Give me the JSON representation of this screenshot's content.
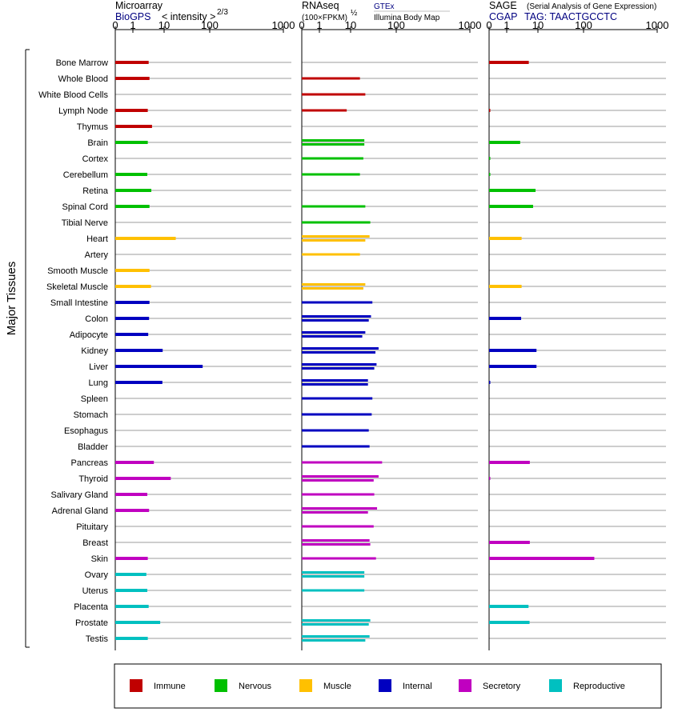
{
  "chart_data": {
    "type": "bar",
    "ylabel": "Major Tissues",
    "categories": [
      "Bone Marrow",
      "Whole Blood",
      "White Blood Cells",
      "Lymph Node",
      "Thymus",
      "Brain",
      "Cortex",
      "Cerebellum",
      "Retina",
      "Spinal Cord",
      "Tibial Nerve",
      "Heart",
      "Artery",
      "Smooth Muscle",
      "Skeletal Muscle",
      "Small Intestine",
      "Colon",
      "Adipocyte",
      "Kidney",
      "Liver",
      "Lung",
      "Spleen",
      "Stomach",
      "Esophagus",
      "Bladder",
      "Pancreas",
      "Thyroid",
      "Salivary Gland",
      "Adrenal Gland",
      "Pituitary",
      "Breast",
      "Skin",
      "Ovary",
      "Uterus",
      "Placenta",
      "Prostate",
      "Testis"
    ],
    "groups": [
      {
        "name": "Immune",
        "color": "#c00000",
        "tissues": [
          "Bone Marrow",
          "Whole Blood",
          "White Blood Cells",
          "Lymph Node",
          "Thymus"
        ]
      },
      {
        "name": "Nervous",
        "color": "#00c000",
        "tissues": [
          "Brain",
          "Cortex",
          "Cerebellum",
          "Retina",
          "Spinal Cord",
          "Tibial Nerve"
        ]
      },
      {
        "name": "Muscle",
        "color": "#ffc000",
        "tissues": [
          "Heart",
          "Artery",
          "Smooth Muscle",
          "Skeletal Muscle"
        ]
      },
      {
        "name": "Internal",
        "color": "#0000c0",
        "tissues": [
          "Small Intestine",
          "Colon",
          "Adipocyte",
          "Kidney",
          "Liver",
          "Lung",
          "Spleen",
          "Stomach",
          "Esophagus",
          "Bladder"
        ]
      },
      {
        "name": "Secretory",
        "color": "#c000c0",
        "tissues": [
          "Pancreas",
          "Thyroid",
          "Salivary Gland",
          "Adrenal Gland",
          "Pituitary",
          "Breast",
          "Skin"
        ]
      },
      {
        "name": "Reproductive",
        "color": "#00c0c0",
        "tissues": [
          "Ovary",
          "Uterus",
          "Placenta",
          "Prostate",
          "Testis"
        ]
      }
    ],
    "panels": [
      {
        "id": "microarray",
        "title": "Microarray",
        "source": "BioGPS",
        "scale_label_main": "< intensity >",
        "scale_label_exp": "2/3",
        "ticks": [
          "0",
          "1",
          "10",
          "100",
          "1000"
        ],
        "xlim": [
          0,
          1000
        ],
        "values": {
          "Bone Marrow": [
            3.2
          ],
          "Whole Blood": [
            3.4
          ],
          "Lymph Node": [
            3.0
          ],
          "Thymus": [
            4.1
          ],
          "Brain": [
            3.0
          ],
          "Cerebellum": [
            2.9
          ],
          "Retina": [
            3.9
          ],
          "Spinal Cord": [
            3.4
          ],
          "Heart": [
            18
          ],
          "Smooth Muscle": [
            3.4
          ],
          "Skeletal Muscle": [
            3.8
          ],
          "Small Intestine": [
            3.4
          ],
          "Colon": [
            3.3
          ],
          "Adipocyte": [
            3.1
          ],
          "Kidney": [
            9.0
          ],
          "Liver": [
            70
          ],
          "Lung": [
            8.8
          ],
          "Pancreas": [
            4.7
          ],
          "Thyroid": [
            14
          ],
          "Salivary Gland": [
            2.9
          ],
          "Adrenal Gland": [
            3.3
          ],
          "Skin": [
            3.0
          ],
          "Ovary": [
            2.7
          ],
          "Uterus": [
            2.9
          ],
          "Placenta": [
            3.2
          ],
          "Prostate": [
            7.5
          ],
          "Testis": [
            3.0
          ]
        }
      },
      {
        "id": "rnaseq",
        "title": "RNAseq",
        "scale_label": "(100×FPKM)",
        "scale_label_exp": "½",
        "source_top": "GTEx",
        "source_bottom": "Illumina Body Map",
        "ticks": [
          "0",
          "1",
          "10",
          "100",
          "1000"
        ],
        "xlim": [
          0,
          1000
        ],
        "values": {
          "Whole Blood": [
            16
          ],
          "White Blood Cells": [
            21
          ],
          "Lymph Node": [
            7.5
          ],
          "Brain": [
            20,
            20
          ],
          "Cortex": [
            19
          ],
          "Cerebellum": [
            16
          ],
          "Spinal Cord": [
            21
          ],
          "Tibial Nerve": [
            27
          ],
          "Heart": [
            26,
            21
          ],
          "Artery": [
            16
          ],
          "Skeletal Muscle": [
            21,
            19
          ],
          "Small Intestine": [
            30
          ],
          "Colon": [
            28,
            25
          ],
          "Adipocyte": [
            21,
            18
          ],
          "Kidney": [
            41,
            35
          ],
          "Liver": [
            37,
            33
          ],
          "Lung": [
            24,
            24
          ],
          "Spleen": [
            30
          ],
          "Stomach": [
            29
          ],
          "Esophagus": [
            25
          ],
          "Bladder": [
            26
          ],
          "Pancreas": [
            49
          ],
          "Thyroid": [
            41,
            32
          ],
          "Salivary Gland": [
            33
          ],
          "Adrenal Gland": [
            38,
            24
          ],
          "Pituitary": [
            32
          ],
          "Breast": [
            26,
            27
          ],
          "Skin": [
            36
          ],
          "Ovary": [
            20,
            20
          ],
          "Uterus": [
            20
          ],
          "Prostate": [
            27,
            25
          ],
          "Testis": [
            26,
            21
          ]
        }
      },
      {
        "id": "sage",
        "title": "SAGE",
        "subtitle": "(Serial Analysis of Gene Expression)",
        "source": "CGAP",
        "tag_label": "TAG: TAACTGCCTC",
        "ticks": [
          "0",
          "1",
          "10",
          "100",
          "1000"
        ],
        "xlim": [
          0,
          1000
        ],
        "values": {
          "Bone Marrow": [
            5.1
          ],
          "Lymph Node": [
            0.05
          ],
          "Brain": [
            2.7
          ],
          "Cortex": [
            0.03
          ],
          "Cerebellum": [
            0.03
          ],
          "Retina": [
            8.4
          ],
          "Spinal Cord": [
            7.0
          ],
          "Heart": [
            3.0
          ],
          "Skeletal Muscle": [
            3.0
          ],
          "Colon": [
            2.9
          ],
          "Kidney": [
            9.0
          ],
          "Liver": [
            9.0
          ],
          "Lung": [
            0.05
          ],
          "Pancreas": [
            5.5
          ],
          "Thyroid": [
            0.05
          ],
          "Breast": [
            5.5
          ],
          "Skin": [
            140
          ],
          "Placenta": [
            5.0
          ],
          "Prostate": [
            5.4
          ]
        }
      }
    ],
    "legend": {
      "placement": "bottom",
      "entries": [
        "Immune",
        "Nervous",
        "Muscle",
        "Internal",
        "Secretory",
        "Reproductive"
      ]
    }
  }
}
